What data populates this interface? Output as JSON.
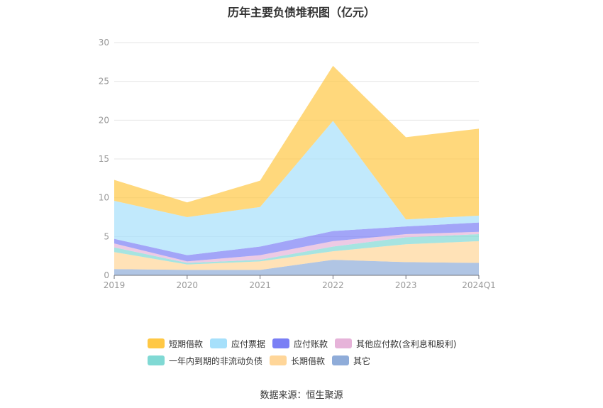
{
  "title": "历年主要负债堆积图（亿元）",
  "source": "数据来源：恒生聚源",
  "chart_data": {
    "type": "area",
    "stacked": true,
    "categories": [
      "2019",
      "2020",
      "2021",
      "2022",
      "2023",
      "2024Q1"
    ],
    "yticks": [
      0,
      5,
      10,
      15,
      20,
      25,
      30
    ],
    "ylim": [
      0,
      30
    ],
    "grid": true,
    "legend_position": "bottom",
    "series": [
      {
        "name": "其它",
        "color": "#8facd9",
        "values": [
          0.8,
          0.7,
          0.7,
          2.0,
          1.7,
          1.6
        ]
      },
      {
        "name": "长期借款",
        "color": "#ffd699",
        "values": [
          2.2,
          0.7,
          1.1,
          1.1,
          2.3,
          2.8
        ]
      },
      {
        "name": "一年内到期的非流动负债",
        "color": "#80d9d4",
        "values": [
          0.6,
          0.2,
          0.2,
          0.6,
          0.9,
          0.9
        ]
      },
      {
        "name": "其他应付款(含利息和股利)",
        "color": "#e6b3d9",
        "values": [
          0.5,
          0.2,
          0.6,
          0.7,
          0.4,
          0.3
        ]
      },
      {
        "name": "应付账款",
        "color": "#7a7ff5",
        "values": [
          0.6,
          0.8,
          1.1,
          1.3,
          1.0,
          1.2
        ]
      },
      {
        "name": "应付票据",
        "color": "#a6e0fb",
        "values": [
          4.9,
          4.9,
          5.1,
          14.2,
          0.9,
          0.9
        ]
      },
      {
        "name": "短期借款",
        "color": "#ffc845",
        "values": [
          2.7,
          1.9,
          3.4,
          7.1,
          10.6,
          11.2
        ]
      }
    ]
  }
}
